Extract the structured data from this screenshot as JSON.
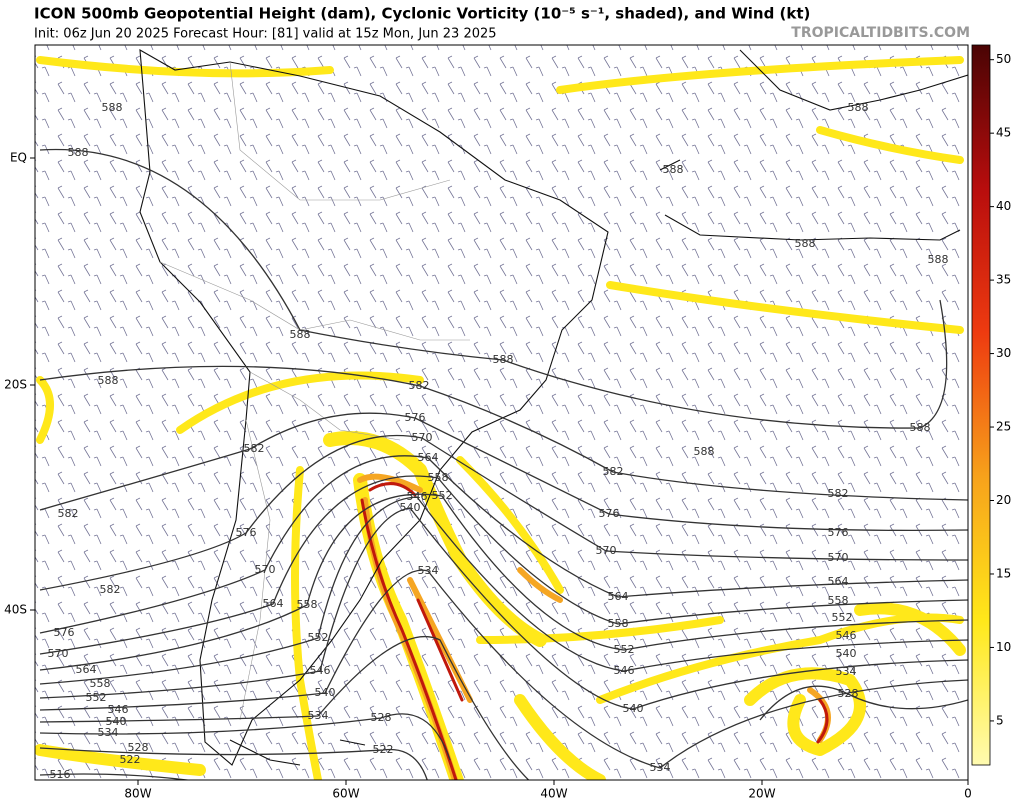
{
  "header": {
    "title": "ICON 500mb Geopotential Height (dam), Cyclonic Vorticity (10⁻⁵ s⁻¹, shaded), and Wind (kt)",
    "subtitle": "Init: 06z Jun 20 2025   Forecast Hour: [81]   valid at 15z Mon, Jun 23 2025",
    "watermark": "TROPICALTIDBITS.COM"
  },
  "map": {
    "lat_labels": [
      "EQ",
      "20S",
      "40S"
    ],
    "lon_labels": [
      "80W",
      "60W",
      "40W",
      "20W",
      "0"
    ],
    "contour_labels": [
      588,
      588,
      588,
      588,
      588,
      588,
      588,
      588,
      588,
      588,
      588,
      582,
      582,
      582,
      582,
      582,
      582,
      576,
      576,
      576,
      576,
      576,
      570,
      570,
      570,
      570,
      570,
      564,
      564,
      564,
      564,
      564,
      558,
      558,
      558,
      558,
      558,
      552,
      552,
      552,
      552,
      552,
      546,
      546,
      546,
      546,
      546,
      540,
      540,
      540,
      540,
      540,
      534,
      534,
      534,
      534,
      534,
      528,
      528,
      528,
      522,
      522,
      516
    ]
  },
  "colorbar": {
    "clim": [
      2,
      51
    ],
    "ticks": [
      5,
      10,
      15,
      20,
      25,
      30,
      35,
      40,
      45,
      50
    ]
  }
}
